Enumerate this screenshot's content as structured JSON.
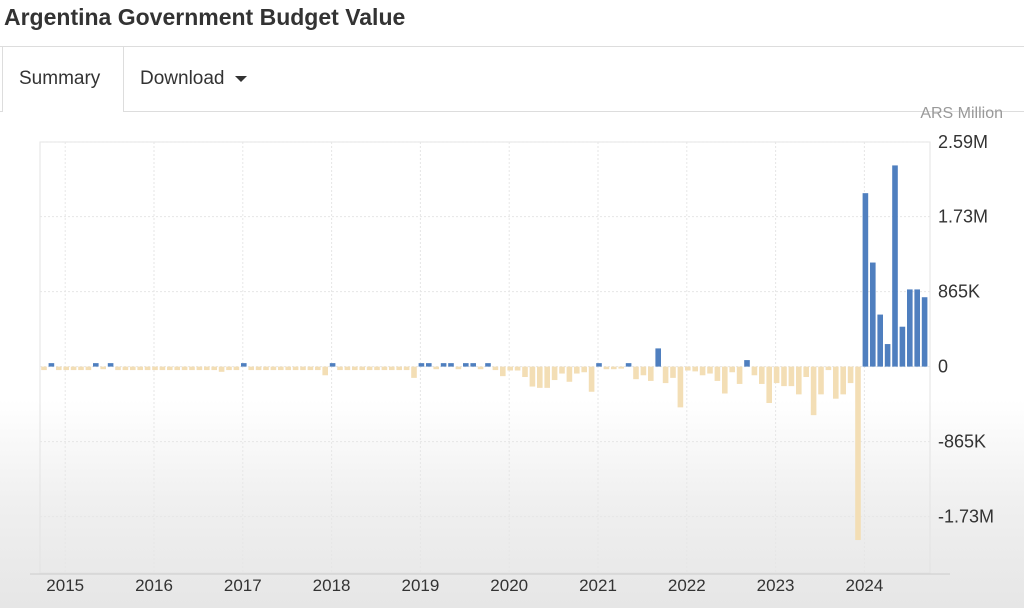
{
  "header": {
    "title": "Argentina Government Budget Value"
  },
  "tabs": [
    {
      "label": "Summary",
      "active": true
    },
    {
      "label": "Download",
      "icon": "caret-down-icon"
    }
  ],
  "chart_data": {
    "type": "bar",
    "unit_label": "ARS Million",
    "frequency": "monthly",
    "start": "2014-10",
    "end": "2024-09",
    "ylim": [
      -2380000,
      2590000
    ],
    "y_ticks": [
      2590000,
      1730000,
      865000,
      0,
      -865000,
      -1730000
    ],
    "y_tick_labels": [
      "2.59M",
      "1.73M",
      "865K",
      "0",
      "-865K",
      "-1.73M"
    ],
    "x_tick_labels": [
      "2015",
      "2016",
      "2017",
      "2018",
      "2019",
      "2020",
      "2021",
      "2022",
      "2023",
      "2024"
    ],
    "grid": true,
    "colors": {
      "positive": "#4f7fbf",
      "negative": "#f3deb5"
    },
    "values": [
      -40000,
      40000,
      -40000,
      -40000,
      -40000,
      -40000,
      -40000,
      40000,
      -30000,
      40000,
      -40000,
      -40000,
      -40000,
      -40000,
      -40000,
      -40000,
      -40000,
      -40000,
      -40000,
      -40000,
      -40000,
      -40000,
      -40000,
      -40000,
      -60000,
      -40000,
      -40000,
      40000,
      -40000,
      -40000,
      -40000,
      -40000,
      -40000,
      -40000,
      -40000,
      -40000,
      -40000,
      -40000,
      -100000,
      40000,
      -40000,
      -40000,
      -40000,
      -40000,
      -40000,
      -40000,
      -40000,
      -40000,
      -40000,
      -40000,
      -130000,
      40000,
      40000,
      -30000,
      40000,
      40000,
      -30000,
      40000,
      40000,
      -30000,
      40000,
      -40000,
      -110000,
      -45000,
      -45000,
      -120000,
      -230000,
      -245000,
      -245000,
      -155000,
      -80000,
      -175000,
      -80000,
      -65000,
      -290000,
      40000,
      -30000,
      -30000,
      -20000,
      40000,
      -145000,
      -100000,
      -165000,
      210000,
      -190000,
      -130000,
      -470000,
      -45000,
      -55000,
      -100000,
      -80000,
      -165000,
      -310000,
      -65000,
      -200000,
      75000,
      -100000,
      -200000,
      -420000,
      -190000,
      -225000,
      -225000,
      -320000,
      -120000,
      -560000,
      -320000,
      -40000,
      -370000,
      -320000,
      -190000,
      -2000000,
      2000000,
      1200000,
      600000,
      260000,
      2320000,
      460000,
      890000,
      890000,
      800000
    ]
  }
}
